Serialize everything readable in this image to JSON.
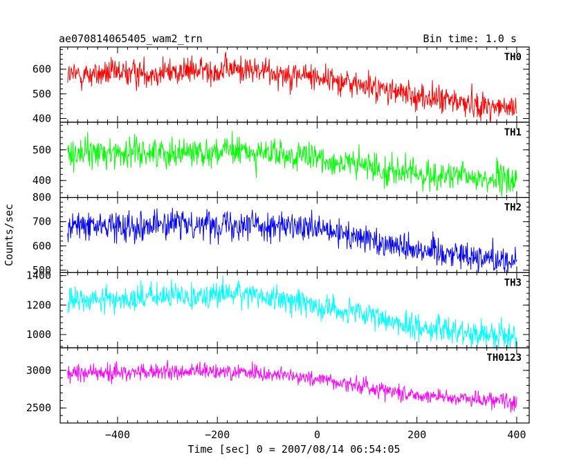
{
  "chart_data": {
    "type": "line",
    "title": "ae070814065405_wam2_trn",
    "subtitle": "Bin time: 1.0 s",
    "xlabel": "Time [sec] 0 = 2007/08/14 06:54:05",
    "ylabel": "Counts/sec",
    "xlim": [
      -515,
      425
    ],
    "x_range": [
      -500,
      400
    ],
    "x_ticks": [
      -400,
      -200,
      0,
      200,
      400
    ],
    "grid": false,
    "panels": [
      {
        "name": "TH0",
        "color": "#ff0000",
        "ylim": [
          385,
          690
        ],
        "y_ticks": [
          400,
          500,
          600
        ],
        "trend": [
          [
            -500,
            575
          ],
          [
            -150,
            600
          ],
          [
            0,
            570
          ],
          [
            200,
            490
          ],
          [
            400,
            435
          ]
        ],
        "noise_sd": 28
      },
      {
        "name": "TH1",
        "color": "#00ff00",
        "ylim": [
          345,
          590
        ],
        "y_ticks": [
          400,
          500
        ],
        "trend": [
          [
            -500,
            490
          ],
          [
            -150,
            495
          ],
          [
            0,
            470
          ],
          [
            200,
            420
          ],
          [
            400,
            400
          ]
        ],
        "noise_sd": 24
      },
      {
        "name": "TH2",
        "color": "#0000ff",
        "ylim": [
          490,
          800
        ],
        "y_ticks": [
          500,
          600,
          700,
          800
        ],
        "trend": [
          [
            -500,
            680
          ],
          [
            -150,
            695
          ],
          [
            0,
            665
          ],
          [
            200,
            590
          ],
          [
            400,
            535
          ]
        ],
        "noise_sd": 30
      },
      {
        "name": "TH3",
        "color": "#00ffff",
        "ylim": [
          910,
          1420
        ],
        "y_ticks": [
          1000,
          1200,
          1400
        ],
        "trend": [
          [
            -500,
            1225
          ],
          [
            -150,
            1280
          ],
          [
            0,
            1200
          ],
          [
            200,
            1050
          ],
          [
            400,
            985
          ]
        ],
        "noise_sd": 45
      },
      {
        "name": "TH0123",
        "color": "#ff00ff",
        "ylim": [
          2300,
          3300
        ],
        "y_ticks": [
          2500,
          3000
        ],
        "trend": [
          [
            -500,
            2965
          ],
          [
            -150,
            2985
          ],
          [
            0,
            2890
          ],
          [
            200,
            2670
          ],
          [
            400,
            2590
          ]
        ],
        "noise_sd": 55
      }
    ]
  }
}
